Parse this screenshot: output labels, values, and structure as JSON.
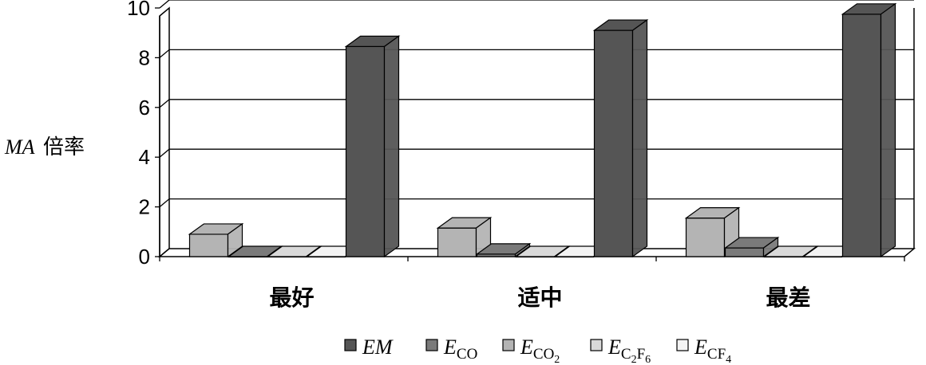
{
  "chart_data": {
    "type": "bar",
    "ylabel_italic": "MA",
    "ylabel_text": "倍率",
    "ylim": [
      0,
      10
    ],
    "yticks": [
      0,
      2,
      4,
      6,
      8,
      10
    ],
    "grid": true,
    "legend_position": "bottom",
    "categories": [
      "最好",
      "适中",
      "最差"
    ],
    "series": [
      {
        "key": "E_CO2",
        "main": "E",
        "sub": "CO",
        "subsub": "2",
        "color": "#b4b4b4",
        "values": [
          0.9,
          1.15,
          1.55
        ]
      },
      {
        "key": "E_CO",
        "main": "E",
        "sub": "CO",
        "subsub": "",
        "color": "#7a7a7a",
        "values": [
          0.0,
          0.1,
          0.35
        ]
      },
      {
        "key": "E_C2F6",
        "main": "E",
        "sub": "C",
        "subsub": "2",
        "sub2": "F",
        "subsub2": "6",
        "color": "#d9d9d9",
        "values": [
          0.0,
          0.0,
          0.0
        ]
      },
      {
        "key": "E_CF4",
        "main": "E",
        "sub": "CF",
        "subsub": "4",
        "color": "#f3f3f3",
        "values": [
          0.0,
          0.0,
          0.0
        ]
      },
      {
        "key": "EM",
        "main": "EM",
        "sub": "",
        "subsub": "",
        "color": "#555555",
        "values": [
          8.45,
          9.1,
          9.75
        ]
      }
    ]
  }
}
